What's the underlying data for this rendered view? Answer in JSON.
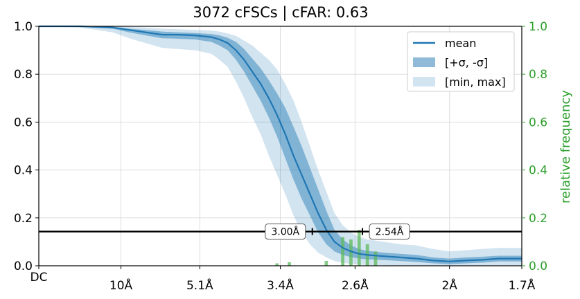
{
  "chart_data": {
    "type": "line",
    "title": "3072 cFSCs | cFAR: 0.63",
    "xlabel": "",
    "ylabel": "",
    "y2label": "relative frequency",
    "xlim": [
      0,
      0.588
    ],
    "ylim": [
      0,
      1.0
    ],
    "y2lim": [
      0,
      1.0
    ],
    "x_unit": "1/Å",
    "x_ticks": [
      {
        "value": 0,
        "label": "DC"
      },
      {
        "value": 0.1,
        "label": "10Å"
      },
      {
        "value": 0.196,
        "label": "5.1Å"
      },
      {
        "value": 0.294,
        "label": "3.4Å"
      },
      {
        "value": 0.385,
        "label": "2.6Å"
      },
      {
        "value": 0.5,
        "label": "2Å"
      },
      {
        "value": 0.588,
        "label": "1.7Å"
      }
    ],
    "x_tick_positions": [
      0,
      0.1,
      0.196,
      0.294,
      0.385,
      0.5,
      0.588
    ],
    "y_ticks": [
      "0.0",
      "0.2",
      "0.4",
      "0.6",
      "0.8",
      "1.0"
    ],
    "y_tick_values": [
      0,
      0.2,
      0.4,
      0.6,
      0.8,
      1.0
    ],
    "y2_ticks": [
      "0.0",
      "0.2",
      "0.4",
      "0.6",
      "0.8",
      "1.0"
    ],
    "y2_tick_values": [
      0,
      0.2,
      0.4,
      0.6,
      0.8,
      1.0
    ],
    "grid": true,
    "legend_position": "top-right",
    "legend": [
      {
        "label": "mean",
        "kind": "line"
      },
      {
        "label": "[+σ, -σ]",
        "kind": "band-dark"
      },
      {
        "label": "[min, max]",
        "kind": "band-light"
      }
    ],
    "threshold": 0.143,
    "annotations": [
      {
        "text": "3.00Å",
        "x": 0.333
      },
      {
        "text": "2.54Å",
        "x": 0.394
      }
    ],
    "colors": {
      "mean": "#1f77b4",
      "sigma_band": "#1f77b4",
      "minmax_band": "#aecde8",
      "histogram": "#5cb85c",
      "right_axis": "#2ca02c",
      "threshold": "#000000"
    },
    "series": [
      {
        "name": "mean",
        "x": [
          0,
          0.05,
          0.09,
          0.11,
          0.13,
          0.15,
          0.17,
          0.19,
          0.21,
          0.22,
          0.23,
          0.24,
          0.25,
          0.26,
          0.27,
          0.28,
          0.29,
          0.3,
          0.31,
          0.32,
          0.33,
          0.34,
          0.35,
          0.36,
          0.37,
          0.38,
          0.39,
          0.4,
          0.42,
          0.44,
          0.46,
          0.48,
          0.5,
          0.52,
          0.54,
          0.56,
          0.58,
          0.588
        ],
        "y": [
          1.0,
          1.0,
          0.995,
          0.985,
          0.975,
          0.965,
          0.965,
          0.962,
          0.955,
          0.945,
          0.93,
          0.9,
          0.86,
          0.81,
          0.76,
          0.7,
          0.63,
          0.55,
          0.46,
          0.38,
          0.3,
          0.22,
          0.15,
          0.1,
          0.075,
          0.06,
          0.05,
          0.045,
          0.04,
          0.035,
          0.03,
          0.022,
          0.018,
          0.022,
          0.025,
          0.03,
          0.03,
          0.03
        ]
      },
      {
        "name": "+σ",
        "x": [
          0,
          0.05,
          0.09,
          0.11,
          0.13,
          0.15,
          0.17,
          0.19,
          0.21,
          0.22,
          0.23,
          0.24,
          0.25,
          0.26,
          0.27,
          0.28,
          0.29,
          0.3,
          0.31,
          0.32,
          0.33,
          0.34,
          0.35,
          0.36,
          0.37,
          0.38,
          0.39,
          0.4,
          0.42,
          0.44,
          0.46,
          0.48,
          0.5,
          0.52,
          0.54,
          0.56,
          0.58,
          0.588
        ],
        "y": [
          1.0,
          1.0,
          0.998,
          0.99,
          0.985,
          0.978,
          0.975,
          0.972,
          0.968,
          0.962,
          0.952,
          0.935,
          0.905,
          0.865,
          0.825,
          0.775,
          0.72,
          0.66,
          0.58,
          0.5,
          0.41,
          0.32,
          0.23,
          0.15,
          0.11,
          0.085,
          0.07,
          0.062,
          0.055,
          0.05,
          0.045,
          0.035,
          0.03,
          0.035,
          0.038,
          0.042,
          0.042,
          0.042
        ]
      },
      {
        "name": "-σ",
        "x": [
          0,
          0.05,
          0.09,
          0.11,
          0.13,
          0.15,
          0.17,
          0.19,
          0.21,
          0.22,
          0.23,
          0.24,
          0.25,
          0.26,
          0.27,
          0.28,
          0.29,
          0.3,
          0.31,
          0.32,
          0.33,
          0.34,
          0.35,
          0.36,
          0.37,
          0.38,
          0.39,
          0.4,
          0.42,
          0.44,
          0.46,
          0.48,
          0.5,
          0.52,
          0.54,
          0.56,
          0.58,
          0.588
        ],
        "y": [
          1.0,
          0.998,
          0.99,
          0.975,
          0.962,
          0.95,
          0.948,
          0.945,
          0.935,
          0.92,
          0.9,
          0.86,
          0.81,
          0.75,
          0.69,
          0.62,
          0.54,
          0.45,
          0.36,
          0.28,
          0.21,
          0.14,
          0.09,
          0.06,
          0.045,
          0.036,
          0.03,
          0.027,
          0.024,
          0.02,
          0.016,
          0.01,
          0.007,
          0.01,
          0.013,
          0.018,
          0.018,
          0.018
        ]
      },
      {
        "name": "max",
        "x": [
          0,
          0.05,
          0.09,
          0.11,
          0.13,
          0.15,
          0.17,
          0.19,
          0.21,
          0.22,
          0.23,
          0.24,
          0.25,
          0.26,
          0.27,
          0.28,
          0.29,
          0.3,
          0.31,
          0.32,
          0.33,
          0.34,
          0.35,
          0.36,
          0.37,
          0.38,
          0.39,
          0.4,
          0.42,
          0.44,
          0.46,
          0.48,
          0.5,
          0.52,
          0.54,
          0.56,
          0.58,
          0.588
        ],
        "y": [
          1.0,
          1.0,
          1.0,
          0.998,
          0.995,
          0.99,
          0.988,
          0.985,
          0.982,
          0.978,
          0.97,
          0.96,
          0.94,
          0.92,
          0.89,
          0.86,
          0.82,
          0.76,
          0.69,
          0.6,
          0.5,
          0.4,
          0.31,
          0.22,
          0.17,
          0.14,
          0.12,
          0.11,
          0.1,
          0.09,
          0.085,
          0.07,
          0.06,
          0.065,
          0.07,
          0.075,
          0.075,
          0.075
        ]
      },
      {
        "name": "min",
        "x": [
          0,
          0.05,
          0.09,
          0.11,
          0.13,
          0.15,
          0.17,
          0.19,
          0.21,
          0.22,
          0.23,
          0.24,
          0.25,
          0.26,
          0.27,
          0.28,
          0.29,
          0.3,
          0.31,
          0.32,
          0.33,
          0.34,
          0.35,
          0.36,
          0.37,
          0.38,
          0.39,
          0.4,
          0.42,
          0.44,
          0.46,
          0.48,
          0.5,
          0.52,
          0.54,
          0.56,
          0.58,
          0.588
        ],
        "y": [
          1.0,
          0.995,
          0.975,
          0.95,
          0.93,
          0.91,
          0.905,
          0.9,
          0.885,
          0.86,
          0.83,
          0.77,
          0.7,
          0.62,
          0.55,
          0.46,
          0.38,
          0.3,
          0.21,
          0.14,
          0.09,
          0.055,
          0.035,
          0.02,
          0.012,
          0.008,
          0.005,
          0.003,
          0.002,
          0.001,
          0.0,
          0.0,
          0.0,
          0.0,
          0.0,
          0.0,
          0.0,
          0.0
        ]
      }
    ],
    "histogram": {
      "x": [
        0.29,
        0.295,
        0.3,
        0.305,
        0.31,
        0.315,
        0.32,
        0.325,
        0.33,
        0.335,
        0.34,
        0.345,
        0.35,
        0.355,
        0.36,
        0.365,
        0.37,
        0.375,
        0.38,
        0.385,
        0.39,
        0.395,
        0.4,
        0.405,
        0.41
      ],
      "y": [
        0.01,
        0.0,
        0.0,
        0.015,
        0.0,
        0.0,
        0.0,
        0.0,
        0.0,
        0.0,
        0.0,
        0.0,
        0.02,
        0.0,
        0.0,
        0.0,
        0.12,
        0.0,
        0.11,
        0.0,
        0.15,
        0.0,
        0.09,
        0.0,
        0.06
      ]
    }
  }
}
